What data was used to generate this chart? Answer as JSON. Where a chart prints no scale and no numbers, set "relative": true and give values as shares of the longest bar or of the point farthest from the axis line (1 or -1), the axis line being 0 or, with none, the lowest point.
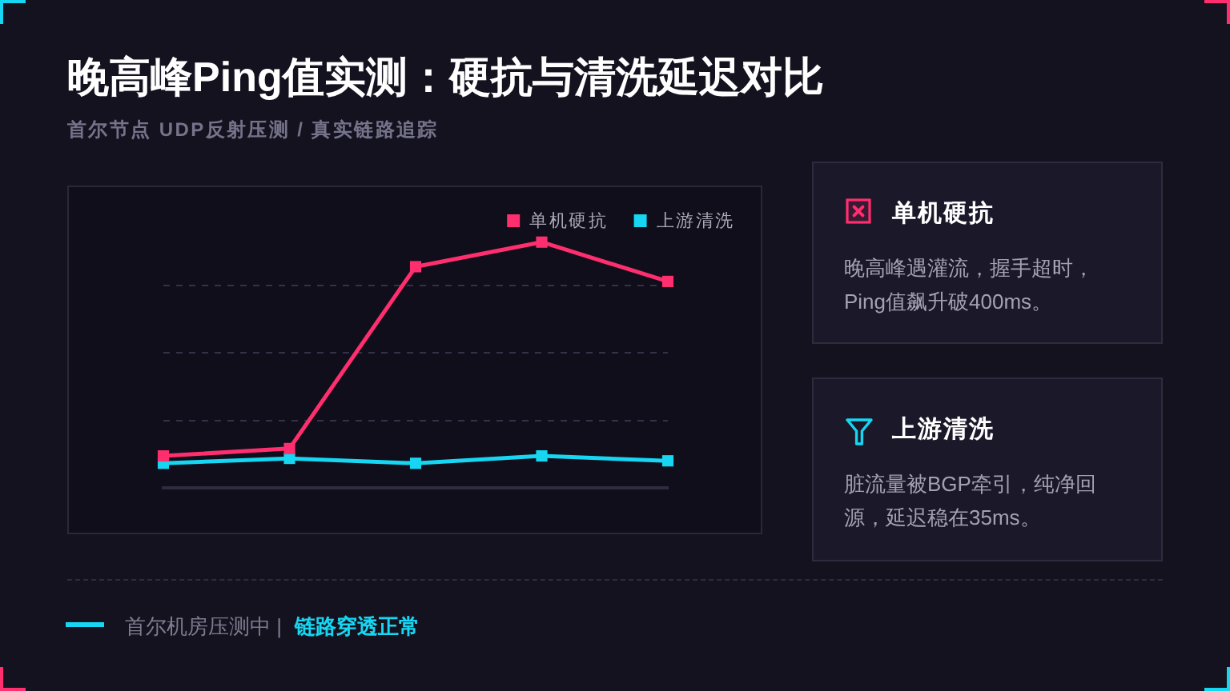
{
  "chart_data": {
    "type": "line",
    "title": "晚高峰Ping值实测：硬抗与清洗延迟对比",
    "subtitle": "首尔节点 UDP反射压测 / 真实链路追踪",
    "categories": [
      null,
      null,
      null,
      null,
      null
    ],
    "relative": true,
    "series": [
      {
        "name": "单机硬抗",
        "color": "#ff2e6e",
        "values": [
          0.13,
          0.16,
          0.9,
          1,
          0.84
        ]
      },
      {
        "name": "上游清洗",
        "color": "#16d6f2",
        "values": [
          0.1,
          0.12,
          0.1,
          0.13,
          0.11
        ]
      }
    ],
    "marker": "square",
    "grid": "y",
    "legend": "top right",
    "annotations": [
      "单机硬抗",
      "晚高峰遇灌流，握手超时，Ping值飙升破400ms。",
      "上游清洗",
      "脏流量被BGP牵引，纯净回源，延迟稳在35ms。",
      "首尔机房压测中 |",
      "链路穿透正常"
    ]
  }
}
